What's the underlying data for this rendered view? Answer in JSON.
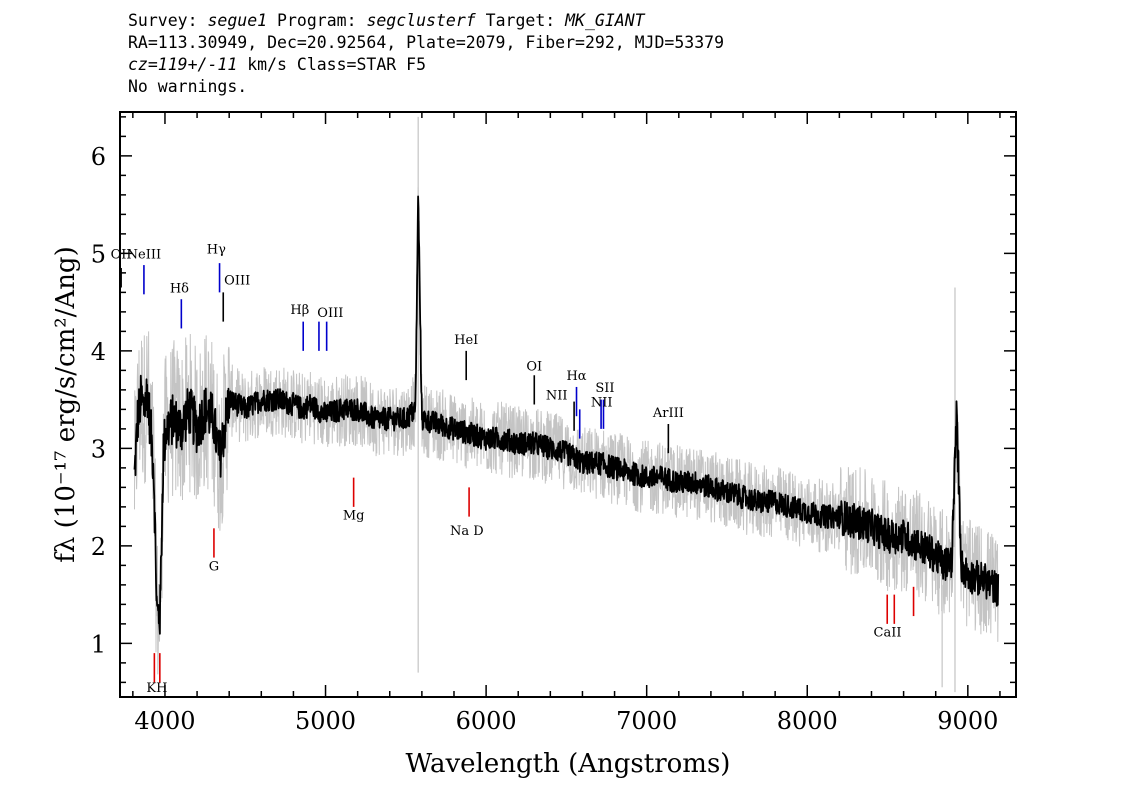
{
  "header": {
    "line1": {
      "survey_label": "Survey: ",
      "survey": "segue1",
      "program_label": " Program: ",
      "program": "segclusterf",
      "target_label": " Target: ",
      "target": "MK_GIANT"
    },
    "line2": "RA=113.30949, Dec=20.92564, Plate=2079, Fiber=292, MJD=53379",
    "line3": {
      "cz": "cz=119+/-11",
      "rest": " km/s Class=STAR F5"
    },
    "line4": "No warnings."
  },
  "chart_data": {
    "type": "line",
    "xlabel": "Wavelength (Angstroms)",
    "ylabel": "fλ (10⁻¹⁷ erg/s/cm²/Ang)",
    "xlim": [
      3720,
      9300
    ],
    "ylim": [
      0.45,
      6.45
    ],
    "xticks": [
      4000,
      5000,
      6000,
      7000,
      8000,
      9000
    ],
    "yticks": [
      1,
      2,
      3,
      4,
      5,
      6
    ],
    "grid": false,
    "colors": {
      "flux": "#000000",
      "error": "#c4c4c4",
      "emission": "#0000cc",
      "absorption": "#dd0000",
      "neutral": "#000000"
    },
    "series": [
      {
        "name": "flux",
        "x": [
          3810,
          3830,
          3850,
          3870,
          3890,
          3910,
          3930,
          3950,
          3970,
          3990,
          4010,
          4050,
          4100,
          4150,
          4200,
          4250,
          4300,
          4340,
          4400,
          4500,
          4600,
          4700,
          4800,
          4860,
          4900,
          5000,
          5100,
          5200,
          5300,
          5400,
          5500,
          5560,
          5577,
          5600,
          5700,
          5800,
          5900,
          6000,
          6100,
          6200,
          6300,
          6400,
          6500,
          6560,
          6600,
          6700,
          6800,
          6900,
          7000,
          7100,
          7200,
          7300,
          7400,
          7500,
          7600,
          7700,
          7800,
          7900,
          8000,
          8100,
          8200,
          8300,
          8400,
          8500,
          8600,
          8700,
          8800,
          8850,
          8900,
          8930,
          8960,
          9000,
          9100,
          9190
        ],
        "y": [
          2.7,
          3.3,
          3.5,
          3.4,
          3.6,
          3.2,
          2.8,
          1.3,
          1.3,
          3.0,
          3.2,
          3.3,
          3.2,
          3.4,
          3.2,
          3.4,
          3.3,
          2.9,
          3.5,
          3.4,
          3.5,
          3.5,
          3.45,
          3.4,
          3.45,
          3.35,
          3.4,
          3.4,
          3.3,
          3.3,
          3.3,
          3.4,
          5.6,
          3.3,
          3.25,
          3.2,
          3.15,
          3.1,
          3.1,
          3.05,
          3.05,
          3.0,
          2.95,
          2.9,
          2.85,
          2.85,
          2.8,
          2.75,
          2.7,
          2.7,
          2.65,
          2.65,
          2.6,
          2.55,
          2.5,
          2.45,
          2.45,
          2.4,
          2.35,
          2.3,
          2.3,
          2.25,
          2.2,
          2.1,
          2.1,
          2.0,
          1.9,
          1.8,
          1.85,
          3.35,
          1.8,
          1.7,
          1.65,
          1.55
        ],
        "noise_amplitude": 0.12,
        "error_amplitude": 0.38
      }
    ],
    "lines": [
      {
        "label": "OII",
        "x": 3727,
        "y0": 4.65,
        "y1": 4.85,
        "color": "neutral",
        "lx": 3727,
        "ly": 4.95
      },
      {
        "label": "NeIII",
        "x": 3869,
        "y0": 4.58,
        "y1": 4.88,
        "color": "emission",
        "lx": 3869,
        "ly": 4.95
      },
      {
        "label": "Hγ",
        "x": 4340,
        "y0": 4.6,
        "y1": 4.9,
        "color": "emission",
        "lx": 4320,
        "ly": 5.0
      },
      {
        "label": "OIII",
        "x": 4363,
        "y0": 4.3,
        "y1": 4.6,
        "color": "neutral",
        "lx": 4450,
        "ly": 4.68
      },
      {
        "label": "Hδ",
        "x": 4102,
        "y0": 4.23,
        "y1": 4.53,
        "color": "emission",
        "lx": 4090,
        "ly": 4.6
      },
      {
        "label": "Hβ",
        "x": 4861,
        "y0": 4.0,
        "y1": 4.3,
        "color": "emission",
        "lx": 4840,
        "ly": 4.38
      },
      {
        "label": "OIII",
        "x": 4959,
        "y0": 4.0,
        "y1": 4.3,
        "color": "emission",
        "lx": 5030,
        "ly": 4.35
      },
      {
        "label": "",
        "x": 5007,
        "y0": 4.0,
        "y1": 4.3,
        "color": "emission",
        "lx": 5007,
        "ly": 4.4
      },
      {
        "label": "HeI",
        "x": 5876,
        "y0": 3.7,
        "y1": 4.0,
        "color": "neutral",
        "lx": 5876,
        "ly": 4.07
      },
      {
        "label": "OI",
        "x": 6300,
        "y0": 3.45,
        "y1": 3.75,
        "color": "neutral",
        "lx": 6300,
        "ly": 3.8
      },
      {
        "label": "NII",
        "x": 6548,
        "y0": 3.18,
        "y1": 3.48,
        "color": "neutral",
        "lx": 6440,
        "ly": 3.5
      },
      {
        "label": "Hα",
        "x": 6563,
        "y0": 3.33,
        "y1": 3.63,
        "color": "emission",
        "lx": 6563,
        "ly": 3.7
      },
      {
        "label": "",
        "x": 6583,
        "y0": 3.1,
        "y1": 3.4,
        "color": "emission",
        "lx": 6583,
        "ly": 3.4
      },
      {
        "label": "SII",
        "x": 6716,
        "y0": 3.2,
        "y1": 3.5,
        "color": "emission",
        "lx": 6740,
        "ly": 3.58
      },
      {
        "label": "NII",
        "x": 6731,
        "y0": 3.2,
        "y1": 3.5,
        "color": "emission",
        "lx": 6720,
        "ly": 3.43
      },
      {
        "label": "ArIII",
        "x": 7135,
        "y0": 2.95,
        "y1": 3.25,
        "color": "neutral",
        "lx": 7135,
        "ly": 3.32
      },
      {
        "label": "KH",
        "x": 3934,
        "y0": 0.6,
        "y1": 0.9,
        "color": "absorption",
        "lx": 3950,
        "ly": 0.5
      },
      {
        "label": "",
        "x": 3968,
        "y0": 0.6,
        "y1": 0.9,
        "color": "absorption",
        "lx": 3968,
        "ly": 0.5
      },
      {
        "label": "G",
        "x": 4305,
        "y0": 1.88,
        "y1": 2.18,
        "color": "absorption",
        "lx": 4305,
        "ly": 1.75
      },
      {
        "label": "Mg",
        "x": 5175,
        "y0": 2.4,
        "y1": 2.7,
        "color": "absorption",
        "lx": 5175,
        "ly": 2.27
      },
      {
        "label": "Na D",
        "x": 5894,
        "y0": 2.3,
        "y1": 2.6,
        "color": "absorption",
        "lx": 5880,
        "ly": 2.11
      },
      {
        "label": "CaII",
        "x": 8498,
        "y0": 1.2,
        "y1": 1.5,
        "color": "absorption",
        "lx": 8500,
        "ly": 1.07
      },
      {
        "label": "",
        "x": 8542,
        "y0": 1.2,
        "y1": 1.5,
        "color": "absorption",
        "lx": 8542,
        "ly": 1.07
      },
      {
        "label": "",
        "x": 8662,
        "y0": 1.28,
        "y1": 1.58,
        "color": "absorption",
        "lx": 8662,
        "ly": 1.15
      }
    ]
  }
}
